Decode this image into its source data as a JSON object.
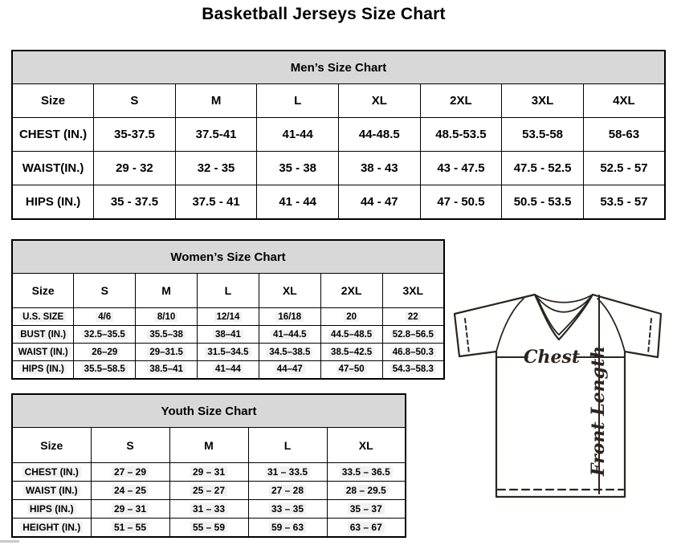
{
  "page": {
    "title": "Basketball Jerseys Size Chart"
  },
  "mens": {
    "title": "Men’s Size Chart",
    "columns": [
      "Size",
      "S",
      "M",
      "L",
      "XL",
      "2XL",
      "3XL",
      "4XL"
    ],
    "rows": [
      {
        "label": "CHEST (IN.)",
        "values": [
          "35-37.5",
          "37.5-41",
          "41-44",
          "44-48.5",
          "48.5-53.5",
          "53.5-58",
          "58-63"
        ]
      },
      {
        "label": "WAIST(IN.)",
        "values": [
          "29 - 32",
          "32 - 35",
          "35 - 38",
          "38 - 43",
          "43 - 47.5",
          "47.5 - 52.5",
          "52.5 - 57"
        ]
      },
      {
        "label": "HIPS (IN.)",
        "values": [
          "35 - 37.5",
          "37.5 - 41",
          "41 - 44",
          "44 - 47",
          "47 - 50.5",
          "50.5 - 53.5",
          "53.5 - 57"
        ]
      }
    ]
  },
  "womens": {
    "title": "Women’s Size Chart",
    "columns": [
      "Size",
      "S",
      "M",
      "L",
      "XL",
      "2XL",
      "3XL"
    ],
    "rows": [
      {
        "label": "U.S. SIZE",
        "values": [
          "4/6",
          "8/10",
          "12/14",
          "16/18",
          "20",
          "22"
        ]
      },
      {
        "label": "BUST (IN.)",
        "values": [
          "32.5–35.5",
          "35.5–38",
          "38–41",
          "41–44.5",
          "44.5–48.5",
          "52.8–56.5"
        ]
      },
      {
        "label": "WAIST (IN.)",
        "values": [
          "26–29",
          "29–31.5",
          "31.5–34.5",
          "34.5–38.5",
          "38.5–42.5",
          "46.8–50.3"
        ]
      },
      {
        "label": "HIPS (IN.)",
        "values": [
          "35.5–58.5",
          "38.5–41",
          "41–44",
          "44–47",
          "47–50",
          "54.3–58.3"
        ]
      }
    ]
  },
  "youth": {
    "title": "Youth Size Chart",
    "columns": [
      "Size",
      "S",
      "M",
      "L",
      "XL"
    ],
    "rows": [
      {
        "label": "CHEST (IN.)",
        "values": [
          "27 – 29",
          "29 – 31",
          "31 – 33.5",
          "33.5 – 36.5"
        ]
      },
      {
        "label": "WAIST (IN.)",
        "values": [
          "24 – 25",
          "25 – 27",
          "27 – 28",
          "28 – 29.5"
        ]
      },
      {
        "label": "HIPS (IN.)",
        "values": [
          "29 – 31",
          "31 – 33",
          "33 – 35",
          "35 – 37"
        ]
      },
      {
        "label": "HEIGHT (IN.)",
        "values": [
          "51 – 55",
          "55 – 59",
          "59 – 63",
          "63 – 67"
        ]
      }
    ]
  },
  "diagram": {
    "chest_label": "Chest",
    "front_length_label": "Front Length"
  },
  "colors": {
    "table_header_bg": "#d8d8d8",
    "table_border": "#000000",
    "diagram_line": "#2b241f",
    "value_highlight": "#f1f1f1"
  }
}
